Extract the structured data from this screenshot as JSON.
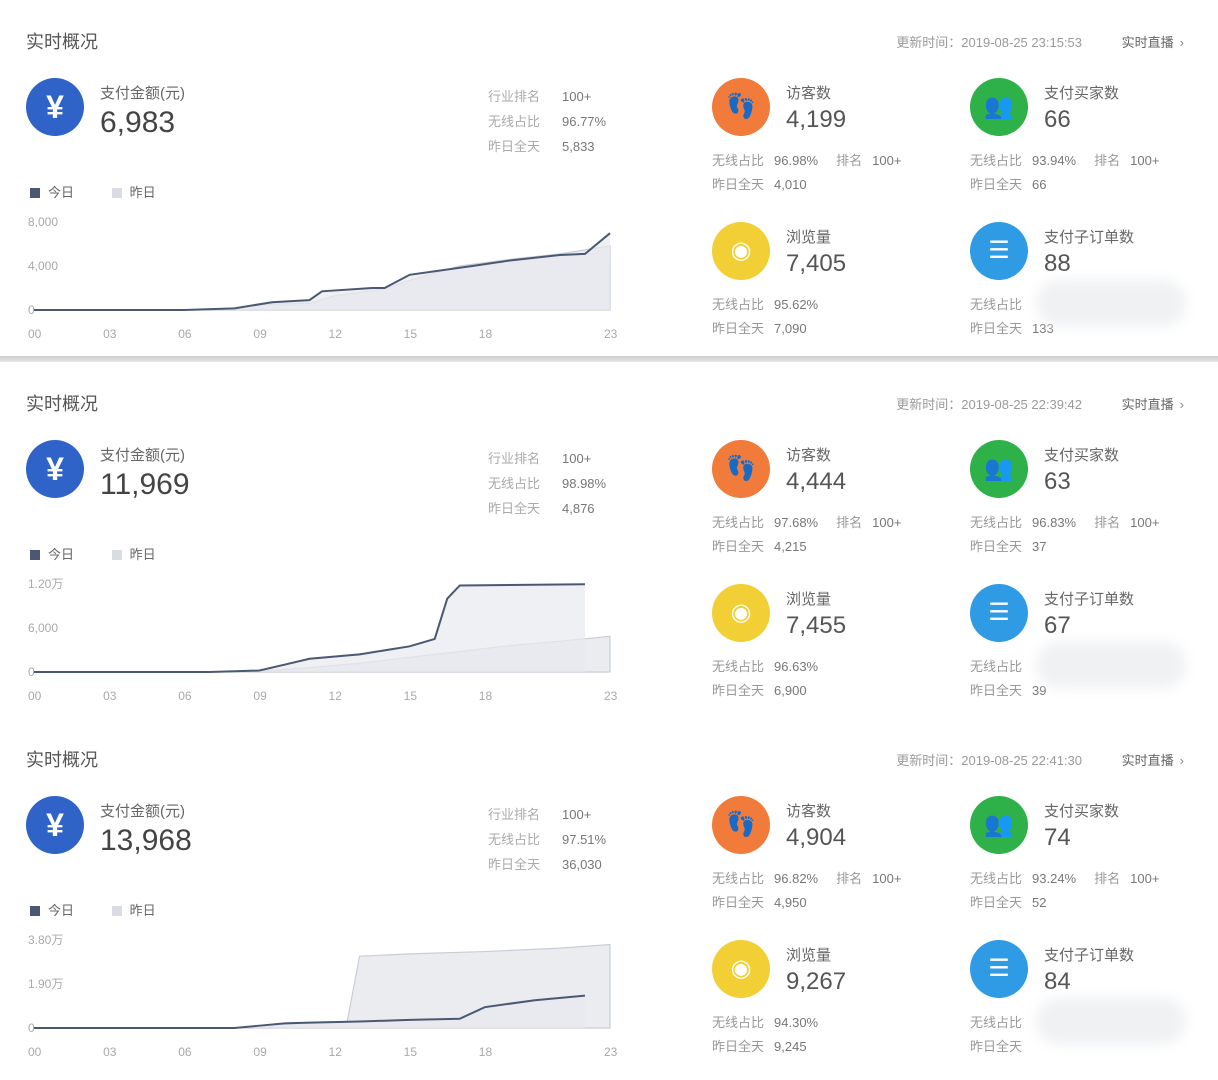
{
  "panels": [
    {
      "title": "实时概况",
      "update_time": "更新时间：2019-08-25 23:15:53",
      "live_label": "实时直播",
      "pay": {
        "icon": "yuan-icon",
        "label": "支付金额(元)",
        "value": "6,983"
      },
      "stats": [
        {
          "label": "行业排名",
          "value": "100+"
        },
        {
          "label": "无线占比",
          "value": "96.77%"
        },
        {
          "label": "昨日全天",
          "value": "5,833"
        }
      ],
      "legend": {
        "today": "今日",
        "yesterday": "昨日"
      },
      "metrics": {
        "visitors": {
          "label": "访客数",
          "value": "4,199",
          "wireless_label": "无线占比",
          "wireless": "96.98%",
          "rank_label": "排名",
          "rank": "100+",
          "yesterday_label": "昨日全天",
          "yesterday": "4,010"
        },
        "buyers": {
          "label": "支付买家数",
          "value": "66",
          "wireless_label": "无线占比",
          "wireless": "93.94%",
          "rank_label": "排名",
          "rank": "100+",
          "yesterday_label": "昨日全天",
          "yesterday": "66"
        },
        "pageviews": {
          "label": "浏览量",
          "value": "7,405",
          "wireless_label": "无线占比",
          "wireless": "95.62%",
          "yesterday_label": "昨日全天",
          "yesterday": "7,090"
        },
        "suborders": {
          "label": "支付子订单数",
          "value": "88",
          "wireless_label": "无线占比",
          "yesterday_label": "昨日全天",
          "yesterday": "133"
        }
      },
      "chart_data": {
        "type": "area",
        "x_ticks": [
          "00",
          "03",
          "06",
          "09",
          "12",
          "15",
          "18",
          "23"
        ],
        "y_ticks": [
          "8,000",
          "4,000",
          "0"
        ],
        "ylim": [
          0,
          8000
        ],
        "series": [
          {
            "name": "今日",
            "x": [
              0,
              6,
              8,
              9.5,
              11,
              11.5,
              13.5,
              14,
              15,
              17.5,
              19,
              21,
              22,
              23
            ],
            "values": [
              0,
              0,
              150,
              700,
              900,
              1700,
              2000,
              2000,
              3200,
              4000,
              4500,
              5000,
              5100,
              6983
            ]
          },
          {
            "name": "昨日",
            "x": [
              0,
              6,
              8,
              9,
              11,
              12,
              14,
              15,
              17,
              19,
              21,
              23
            ],
            "values": [
              0,
              0,
              100,
              500,
              600,
              1300,
              1900,
              2700,
              4000,
              4600,
              5100,
              5833
            ]
          }
        ]
      },
      "colors": {
        "today_line": "#4a5872",
        "yesterday_area": "#d9dde3"
      }
    },
    {
      "title": "实时概况",
      "update_time": "更新时间：2019-08-25 22:39:42",
      "live_label": "实时直播",
      "pay": {
        "icon": "yuan-icon",
        "label": "支付金额(元)",
        "value": "11,969"
      },
      "stats": [
        {
          "label": "行业排名",
          "value": "100+"
        },
        {
          "label": "无线占比",
          "value": "98.98%"
        },
        {
          "label": "昨日全天",
          "value": "4,876"
        }
      ],
      "legend": {
        "today": "今日",
        "yesterday": "昨日"
      },
      "metrics": {
        "visitors": {
          "label": "访客数",
          "value": "4,444",
          "wireless_label": "无线占比",
          "wireless": "97.68%",
          "rank_label": "排名",
          "rank": "100+",
          "yesterday_label": "昨日全天",
          "yesterday": "4,215"
        },
        "buyers": {
          "label": "支付买家数",
          "value": "63",
          "wireless_label": "无线占比",
          "wireless": "96.83%",
          "rank_label": "排名",
          "rank": "100+",
          "yesterday_label": "昨日全天",
          "yesterday": "37"
        },
        "pageviews": {
          "label": "浏览量",
          "value": "7,455",
          "wireless_label": "无线占比",
          "wireless": "96.63%",
          "yesterday_label": "昨日全天",
          "yesterday": "6,900"
        },
        "suborders": {
          "label": "支付子订单数",
          "value": "67",
          "wireless_label": "无线占比",
          "yesterday_label": "昨日全天",
          "yesterday": "39"
        }
      },
      "chart_data": {
        "type": "area",
        "x_ticks": [
          "00",
          "03",
          "06",
          "09",
          "12",
          "15",
          "18",
          "23"
        ],
        "y_ticks": [
          "1.20万",
          "6,000",
          "0"
        ],
        "ylim": [
          0,
          12000
        ],
        "series": [
          {
            "name": "今日",
            "x": [
              0,
              7,
              9,
              10,
              11,
              13,
              15,
              16,
              16.5,
              17,
              22
            ],
            "values": [
              0,
              0,
              200,
              1000,
              1800,
              2400,
              3500,
              4500,
              10000,
              11800,
              11969
            ]
          },
          {
            "name": "昨日",
            "x": [
              0,
              7,
              9,
              11,
              13,
              15,
              17,
              19,
              21,
              23
            ],
            "values": [
              0,
              0,
              100,
              600,
              1200,
              2000,
              2800,
              3600,
              4200,
              4876
            ]
          }
        ]
      },
      "colors": {
        "today_line": "#4a5872",
        "yesterday_area": "#d9dde3"
      }
    },
    {
      "title": "实时概况",
      "update_time": "更新时间：2019-08-25 22:41:30",
      "live_label": "实时直播",
      "pay": {
        "icon": "yuan-icon",
        "label": "支付金额(元)",
        "value": "13,968"
      },
      "stats": [
        {
          "label": "行业排名",
          "value": "100+"
        },
        {
          "label": "无线占比",
          "value": "97.51%"
        },
        {
          "label": "昨日全天",
          "value": "36,030"
        }
      ],
      "legend": {
        "today": "今日",
        "yesterday": "昨日"
      },
      "metrics": {
        "visitors": {
          "label": "访客数",
          "value": "4,904",
          "wireless_label": "无线占比",
          "wireless": "96.82%",
          "rank_label": "排名",
          "rank": "100+",
          "yesterday_label": "昨日全天",
          "yesterday": "4,950"
        },
        "buyers": {
          "label": "支付买家数",
          "value": "74",
          "wireless_label": "无线占比",
          "wireless": "93.24%",
          "rank_label": "排名",
          "rank": "100+",
          "yesterday_label": "昨日全天",
          "yesterday": "52"
        },
        "pageviews": {
          "label": "浏览量",
          "value": "9,267",
          "wireless_label": "无线占比",
          "wireless": "94.30%",
          "yesterday_label": "昨日全天",
          "yesterday": "9,245"
        },
        "suborders": {
          "label": "支付子订单数",
          "value": "84",
          "wireless_label": "无线占比",
          "yesterday_label": "昨日全天"
        }
      },
      "chart_data": {
        "type": "area",
        "x_ticks": [
          "00",
          "03",
          "06",
          "09",
          "12",
          "15",
          "18",
          "23"
        ],
        "y_ticks": [
          "3.80万",
          "1.90万",
          "0"
        ],
        "ylim": [
          0,
          38000
        ],
        "series": [
          {
            "name": "今日",
            "x": [
              0,
              8,
              9,
              10,
              11,
              13,
              15,
              17,
              18,
              20,
              22
            ],
            "values": [
              0,
              0,
              1000,
              2000,
              2300,
              2800,
              3500,
              4000,
              9000,
              12000,
              13968
            ]
          },
          {
            "name": "昨日",
            "x": [
              0,
              8,
              9,
              11,
              12.5,
              13,
              15,
              18,
              21,
              23
            ],
            "values": [
              0,
              0,
              1000,
              2000,
              2500,
              31000,
              32000,
              33000,
              34500,
              36030
            ]
          }
        ]
      },
      "colors": {
        "today_line": "#4a5872",
        "yesterday_area": "#d9dde3"
      }
    }
  ],
  "icon_colors": {
    "yuan": "#2f63c8",
    "visitors": "#f07b3a",
    "buyers": "#2fb14a",
    "pageviews": "#f3cf36",
    "suborders": "#2f9be4"
  }
}
